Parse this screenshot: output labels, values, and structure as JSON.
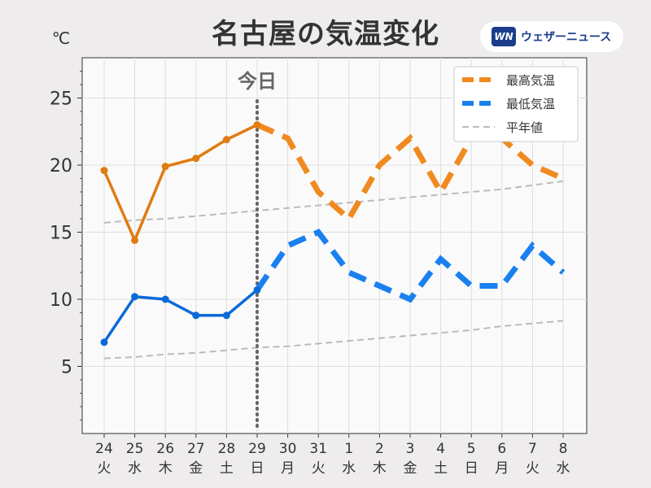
{
  "title": "名古屋の気温変化",
  "brand": {
    "logo_text": "WN",
    "name": "ウェザーニュース",
    "logo_color": "#1a3e8c"
  },
  "chart_data": {
    "type": "line",
    "title": "名古屋の気温変化",
    "ylabel": "℃",
    "xlabel": "",
    "ylim": [
      0,
      28
    ],
    "yticks": [
      5,
      10,
      15,
      20,
      25
    ],
    "grid": true,
    "legend_position": "top-right",
    "today_label": "今日",
    "today_index": 5,
    "categories": [
      {
        "date": "24",
        "day": "火",
        "color": "#333333"
      },
      {
        "date": "25",
        "day": "水",
        "color": "#333333"
      },
      {
        "date": "26",
        "day": "木",
        "color": "#333333"
      },
      {
        "date": "27",
        "day": "金",
        "color": "#333333"
      },
      {
        "date": "28",
        "day": "土",
        "color": "#2a8ad4"
      },
      {
        "date": "29",
        "day": "日",
        "color": "#e03030"
      },
      {
        "date": "30",
        "day": "月",
        "color": "#333333"
      },
      {
        "date": "31",
        "day": "火",
        "color": "#333333"
      },
      {
        "date": "1",
        "day": "水",
        "color": "#333333"
      },
      {
        "date": "2",
        "day": "木",
        "color": "#333333"
      },
      {
        "date": "3",
        "day": "金",
        "color": "#333333"
      },
      {
        "date": "4",
        "day": "土",
        "color": "#2a8ad4"
      },
      {
        "date": "5",
        "day": "日",
        "color": "#e03030"
      },
      {
        "date": "6",
        "day": "月",
        "color": "#333333"
      },
      {
        "date": "7",
        "day": "火",
        "color": "#333333"
      },
      {
        "date": "8",
        "day": "水",
        "color": "#333333"
      }
    ],
    "series": [
      {
        "name": "最高気温",
        "color_observed": "#e07b10",
        "color_forecast": "#f08a20",
        "values": [
          19.6,
          14.4,
          19.9,
          20.5,
          21.9,
          23.0,
          22,
          18,
          16,
          20,
          22,
          18,
          22,
          22,
          20,
          19
        ]
      },
      {
        "name": "最低気温",
        "color_observed": "#0a6ad8",
        "color_forecast": "#1a80f0",
        "values": [
          6.8,
          10.2,
          10.0,
          8.8,
          8.8,
          10.7,
          14,
          15,
          12,
          11,
          10,
          13,
          11,
          11,
          14,
          12
        ]
      },
      {
        "name": "平年値",
        "color": "#bbbbbb",
        "values_high": [
          15.7,
          15.9,
          16.0,
          16.2,
          16.4,
          16.6,
          16.8,
          17.0,
          17.2,
          17.4,
          17.6,
          17.8,
          18.0,
          18.2,
          18.5,
          18.8
        ],
        "values_low": [
          5.6,
          5.7,
          5.9,
          6.0,
          6.2,
          6.4,
          6.5,
          6.7,
          6.9,
          7.1,
          7.3,
          7.5,
          7.7,
          8.0,
          8.2,
          8.4
        ]
      }
    ]
  }
}
